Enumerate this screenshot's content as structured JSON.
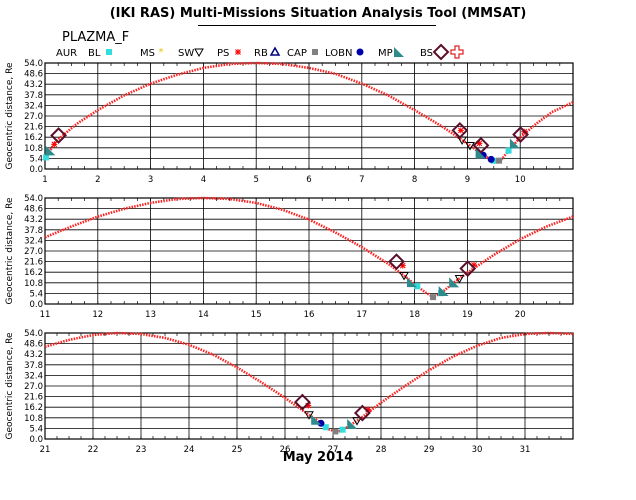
{
  "header": {
    "title": "(IKI RAS) Multi-Missions Situation Analysis Tool (MMSAT)",
    "mission": "PLAZMA_F",
    "month_label": "May 2014"
  },
  "legend": [
    {
      "label": "AUR",
      "marker": "none",
      "color": "#000000"
    },
    {
      "label": "BL",
      "marker": "filled-square",
      "color": "#33dddd"
    },
    {
      "label": "MS",
      "marker": "small-star",
      "color": "#e6c200"
    },
    {
      "label": "SW",
      "marker": "down-triangle-open",
      "color": "#000000"
    },
    {
      "label": "PS",
      "marker": "asterisk",
      "color": "#ff0000"
    },
    {
      "label": "RB",
      "marker": "up-triangle-open",
      "color": "#000080"
    },
    {
      "label": "CAP",
      "marker": "filled-square-small",
      "color": "#808080"
    },
    {
      "label": "LOBN",
      "marker": "filled-circle",
      "color": "#0000aa"
    },
    {
      "label": "MP",
      "marker": "triangle-corner",
      "color": "#2e8b8b"
    },
    {
      "label": "BS",
      "marker": "open-diamond",
      "color": "#5a0f2a"
    },
    {
      "label": "",
      "marker": "open-cross",
      "color": "#e02020"
    }
  ],
  "chart_data": [
    {
      "type": "line",
      "ylabel": "Geocentric distance, Re",
      "ylim": [
        0,
        54
      ],
      "yticks": [
        "0.0",
        "5.4",
        "10.8",
        "16.2",
        "21.6",
        "27.0",
        "32.4",
        "37.8",
        "43.2",
        "48.6",
        "54.0"
      ],
      "xlim": [
        1,
        11
      ],
      "xticks": [
        "1",
        "2",
        "3",
        "4",
        "5",
        "6",
        "7",
        "8",
        "9",
        "10"
      ],
      "grid": true,
      "series": [
        {
          "values_x": [
            1.0,
            1.2,
            1.6,
            2.0,
            2.5,
            3.0,
            3.5,
            4.0,
            4.5,
            5.0,
            5.5,
            6.0,
            6.5,
            7.0,
            7.5,
            8.0,
            8.5,
            9.0,
            9.3,
            9.55,
            9.65,
            9.8,
            10.0,
            10.3,
            10.6,
            11.0
          ],
          "values_y": [
            5,
            14,
            23,
            30,
            37.5,
            43.5,
            48,
            51.5,
            53.5,
            54,
            53.5,
            51.5,
            48.5,
            43.5,
            37.5,
            30,
            22,
            13,
            7,
            3.5,
            5,
            10,
            16,
            23,
            29,
            34
          ]
        }
      ],
      "regions": [
        {
          "label": "BS",
          "x": [
            1.2,
            8.8,
            9.2,
            9.95
          ]
        },
        {
          "label": "PS",
          "x": [
            1.1,
            8.8,
            9.15,
            10.0
          ]
        },
        {
          "label": "MP",
          "x": [
            1.1,
            9.25,
            9.9
          ]
        },
        {
          "label": "SW",
          "x": [
            8.9,
            9.05
          ]
        },
        {
          "label": "BL",
          "x": [
            1.02,
            9.5,
            9.78
          ]
        },
        {
          "label": "CAP",
          "x": [
            9.6
          ]
        },
        {
          "label": "LOBN",
          "x": [
            9.3,
            9.45
          ]
        }
      ]
    },
    {
      "type": "line",
      "ylabel": "Geocentric distance, Re",
      "ylim": [
        0,
        54
      ],
      "yticks": [
        "0.0",
        "5.4",
        "10.8",
        "16.2",
        "21.6",
        "27.0",
        "32.4",
        "37.8",
        "43.2",
        "48.6",
        "54.0"
      ],
      "xlim": [
        11,
        21
      ],
      "xticks": [
        "11",
        "12",
        "13",
        "14",
        "15",
        "16",
        "17",
        "18",
        "19",
        "20"
      ],
      "grid": true,
      "series": [
        {
          "values_x": [
            11.0,
            11.5,
            12.0,
            12.5,
            13.0,
            13.5,
            14.0,
            14.5,
            15.0,
            15.5,
            16.0,
            16.5,
            17.0,
            17.5,
            17.8,
            18.0,
            18.2,
            18.35,
            18.5,
            18.7,
            19.0,
            19.5,
            20.0,
            20.5,
            21.0
          ],
          "values_y": [
            34,
            39.5,
            44.5,
            48.5,
            51.5,
            53.5,
            54,
            53.5,
            51.5,
            48,
            43,
            36.5,
            29,
            20.5,
            14.5,
            10,
            6,
            3.5,
            5.5,
            10,
            16,
            25,
            33,
            39.5,
            44.5
          ]
        }
      ],
      "regions": [
        {
          "label": "BS",
          "x": [
            17.6,
            18.95
          ]
        },
        {
          "label": "PS",
          "x": [
            17.7,
            19.05
          ]
        },
        {
          "label": "MP",
          "x": [
            17.95,
            18.55,
            18.75
          ]
        },
        {
          "label": "SW",
          "x": [
            17.8,
            18.85
          ]
        },
        {
          "label": "BL",
          "x": [
            18.05,
            18.5
          ]
        },
        {
          "label": "CAP",
          "x": [
            18.35
          ]
        }
      ]
    },
    {
      "type": "line",
      "ylabel": "Geocentric distance, Re",
      "ylim": [
        0,
        54
      ],
      "yticks": [
        "0.0",
        "5.4",
        "10.8",
        "16.2",
        "21.6",
        "27.0",
        "32.4",
        "37.8",
        "43.2",
        "48.6",
        "54.0"
      ],
      "xlim": [
        21,
        32
      ],
      "xticks": [
        "21",
        "22",
        "23",
        "24",
        "25",
        "26",
        "27",
        "28",
        "29",
        "30",
        "31"
      ],
      "grid": true,
      "series": [
        {
          "values_x": [
            21.0,
            21.5,
            22.0,
            22.5,
            23.0,
            23.5,
            24.0,
            24.5,
            25.0,
            25.5,
            26.0,
            26.4,
            26.7,
            26.9,
            27.1,
            27.3,
            27.6,
            28.0,
            28.5,
            29.0,
            29.5,
            30.0,
            30.5,
            31.0,
            31.5,
            32.0
          ],
          "values_y": [
            47,
            50.5,
            53,
            54,
            53.5,
            51.5,
            48,
            43,
            36.5,
            29,
            21,
            14,
            9,
            5,
            3.5,
            6,
            11,
            18.5,
            27,
            35,
            42,
            47.5,
            51.5,
            53.5,
            54,
            53.5
          ]
        }
      ],
      "regions": [
        {
          "label": "BS",
          "x": [
            26.3,
            27.55
          ]
        },
        {
          "label": "PS",
          "x": [
            26.4,
            27.65
          ]
        },
        {
          "label": "MP",
          "x": [
            26.65,
            27.4
          ]
        },
        {
          "label": "SW",
          "x": [
            26.5,
            27.5
          ]
        },
        {
          "label": "BL",
          "x": [
            26.85,
            27.2
          ]
        },
        {
          "label": "CAP",
          "x": [
            27.05
          ]
        },
        {
          "label": "LOBN",
          "x": [
            26.75
          ]
        }
      ]
    }
  ]
}
